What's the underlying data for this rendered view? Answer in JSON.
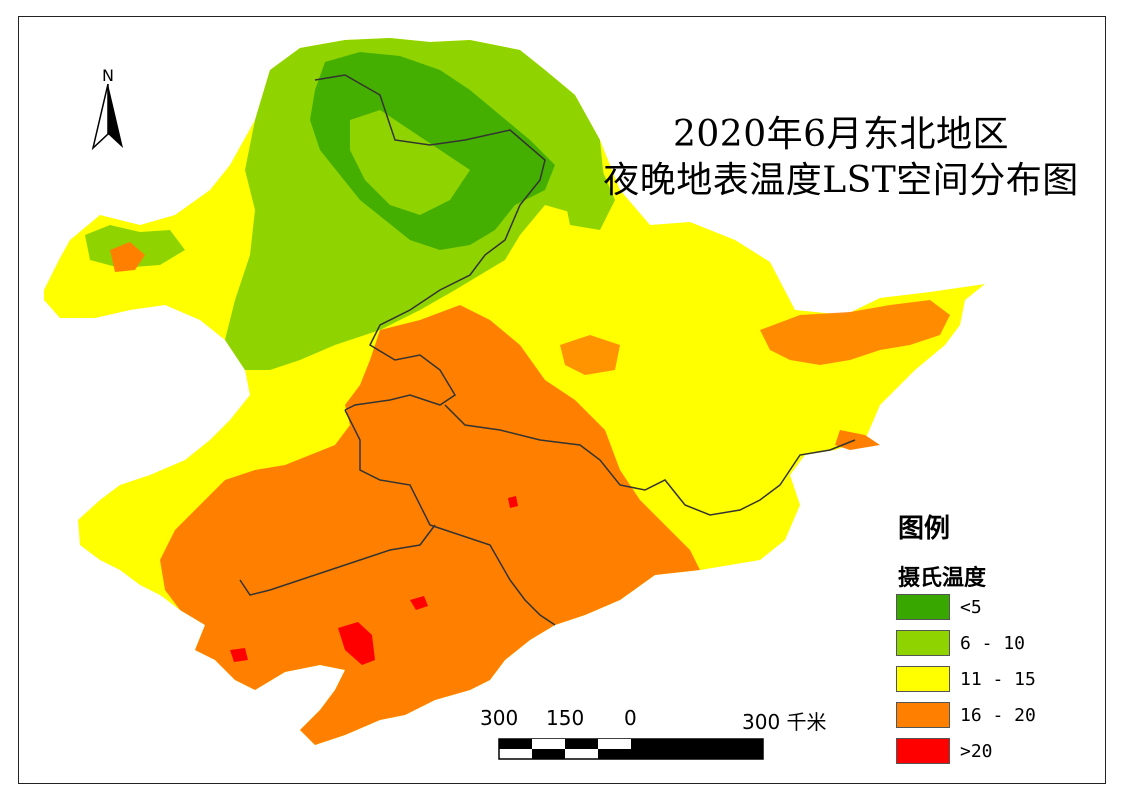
{
  "title": {
    "line1": "2020年6月东北地区",
    "line2": "夜晚地表温度LST空间分布图"
  },
  "north_arrow": {
    "label": "N",
    "icon": "north-arrow-icon"
  },
  "legend": {
    "title": "图例",
    "subtitle": "摄氏温度",
    "items": [
      {
        "label": "<5",
        "color": "#38a800"
      },
      {
        "label": "6 - 10",
        "color": "#8fd400"
      },
      {
        "label": "11 - 15",
        "color": "#ffff00"
      },
      {
        "label": "16 - 20",
        "color": "#ff8000"
      },
      {
        "label": ">20",
        "color": "#ff0000"
      }
    ]
  },
  "scale_bar": {
    "labels": [
      "300",
      "150",
      "0",
      "300 千米"
    ]
  },
  "map": {
    "region": "东北地区",
    "colors": {
      "cold": "#38a800",
      "cool": "#8fd400",
      "mild": "#ffff00",
      "warm": "#ff8000",
      "hot": "#ff0000",
      "boundary": "#333333"
    }
  }
}
